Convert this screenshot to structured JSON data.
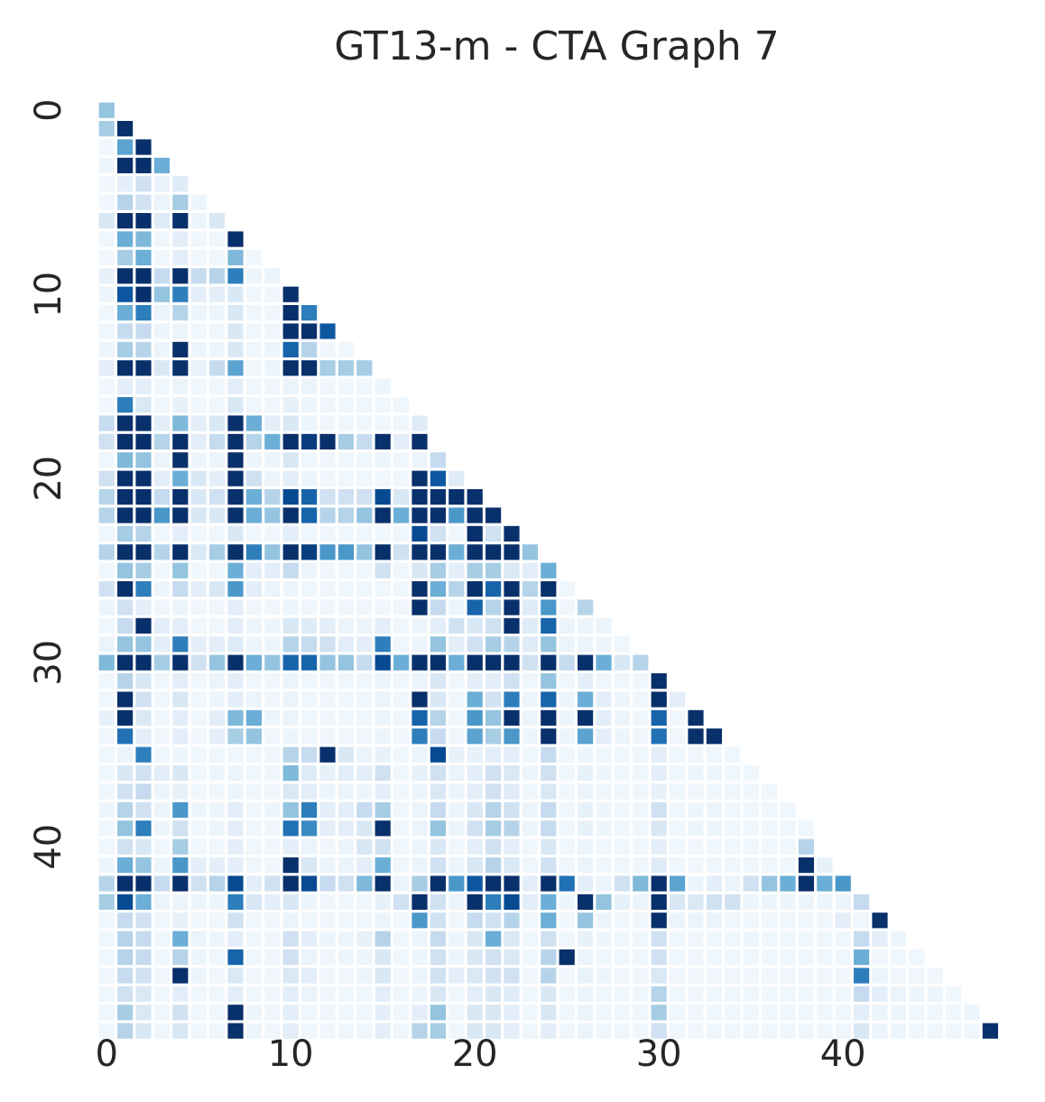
{
  "chart_data": {
    "type": "heatmap",
    "title": "GT13-m - CTA Graph 7",
    "xlabel": "",
    "ylabel": "",
    "n": 50,
    "triangle": "lower",
    "colormap": "Blues",
    "value_range": [
      0,
      1
    ],
    "xticks": [
      0,
      10,
      20,
      30,
      40
    ],
    "yticks": [
      0,
      10,
      20,
      30,
      40
    ],
    "grid": false,
    "rows": [
      [
        0.4
      ],
      [
        0.35,
        1.0
      ],
      [
        0.03,
        0.55,
        1.0
      ],
      [
        0.05,
        1.0,
        1.0,
        0.5
      ],
      [
        0.03,
        0.1,
        0.2,
        0.07,
        0.12
      ],
      [
        0.03,
        0.3,
        0.2,
        0.06,
        0.35,
        0.05
      ],
      [
        0.15,
        1.0,
        1.0,
        0.12,
        1.0,
        0.05,
        0.15
      ],
      [
        0.04,
        0.5,
        0.45,
        0.04,
        0.1,
        0.04,
        0.04,
        1.0
      ],
      [
        0.03,
        0.35,
        0.5,
        0.04,
        0.1,
        0.04,
        0.04,
        0.45,
        0.04
      ],
      [
        0.08,
        1.0,
        1.0,
        0.25,
        1.0,
        0.25,
        0.3,
        0.7,
        0.05,
        0.06
      ],
      [
        0.05,
        0.85,
        1.0,
        0.4,
        0.7,
        0.1,
        0.1,
        0.15,
        0.04,
        0.04,
        1.0
      ],
      [
        0.04,
        0.5,
        0.7,
        0.06,
        0.3,
        0.05,
        0.05,
        0.15,
        0.04,
        0.04,
        1.0,
        0.7
      ],
      [
        0.04,
        0.25,
        0.25,
        0.05,
        0.06,
        0.04,
        0.04,
        0.15,
        0.04,
        0.04,
        1.0,
        1.0,
        0.85
      ],
      [
        0.05,
        0.35,
        0.3,
        0.05,
        1.0,
        0.05,
        0.05,
        0.15,
        0.04,
        0.05,
        0.8,
        0.3,
        0.04,
        0.04
      ],
      [
        0.1,
        1.0,
        1.0,
        0.15,
        1.0,
        0.08,
        0.25,
        0.55,
        0.04,
        0.05,
        1.0,
        1.0,
        0.35,
        0.35,
        0.35
      ],
      [
        0.03,
        0.1,
        0.1,
        0.04,
        0.06,
        0.04,
        0.04,
        0.1,
        0.04,
        0.04,
        0.06,
        0.06,
        0.04,
        0.04,
        0.04,
        0.05
      ],
      [
        0.03,
        0.7,
        0.15,
        0.04,
        0.08,
        0.04,
        0.04,
        0.15,
        0.04,
        0.04,
        0.08,
        0.05,
        0.04,
        0.04,
        0.04,
        0.04,
        0.04
      ],
      [
        0.25,
        1.0,
        1.0,
        0.1,
        0.45,
        0.1,
        0.15,
        1.0,
        0.5,
        0.1,
        0.15,
        0.05,
        0.04,
        0.04,
        0.04,
        0.04,
        0.04,
        0.12
      ],
      [
        0.2,
        1.0,
        1.0,
        0.3,
        1.0,
        0.1,
        0.25,
        1.0,
        0.3,
        0.5,
        1.0,
        0.95,
        1.0,
        0.35,
        0.25,
        1.0,
        0.1,
        1.0
      ],
      [
        0.04,
        0.45,
        0.4,
        0.05,
        1.0,
        0.05,
        0.05,
        1.0,
        0.05,
        0.05,
        0.15,
        0.04,
        0.04,
        0.04,
        0.04,
        0.05,
        0.04,
        0.05,
        0.25
      ],
      [
        0.2,
        1.0,
        1.0,
        0.1,
        0.5,
        0.15,
        0.1,
        1.0,
        0.2,
        0.05,
        0.1,
        0.05,
        0.04,
        0.04,
        0.04,
        0.04,
        0.04,
        1.0,
        0.85,
        0.12
      ],
      [
        0.3,
        1.0,
        1.0,
        0.25,
        1.0,
        0.15,
        0.2,
        1.0,
        0.5,
        0.3,
        0.9,
        0.8,
        0.2,
        0.2,
        0.2,
        0.9,
        0.15,
        1.0,
        1.0,
        1.0,
        1.0
      ],
      [
        0.3,
        1.0,
        1.0,
        0.6,
        1.0,
        0.15,
        0.15,
        1.0,
        0.5,
        0.4,
        1.0,
        0.8,
        0.3,
        0.3,
        0.4,
        1.0,
        0.5,
        1.0,
        1.0,
        0.6,
        1.0,
        1.0
      ],
      [
        0.04,
        0.35,
        0.3,
        0.04,
        0.1,
        0.04,
        0.04,
        0.15,
        0.04,
        0.04,
        0.1,
        0.04,
        0.04,
        0.04,
        0.04,
        0.04,
        0.04,
        0.9,
        0.2,
        0.04,
        1.0,
        0.2,
        1.0
      ],
      [
        0.3,
        1.0,
        1.0,
        0.3,
        1.0,
        0.15,
        0.35,
        1.0,
        0.7,
        0.4,
        1.0,
        0.95,
        0.6,
        0.6,
        0.4,
        1.0,
        0.2,
        1.0,
        1.0,
        0.5,
        1.0,
        1.0,
        1.0,
        0.4
      ],
      [
        0.04,
        0.4,
        0.35,
        0.04,
        0.4,
        0.04,
        0.04,
        0.5,
        0.1,
        0.1,
        0.25,
        0.05,
        0.04,
        0.04,
        0.04,
        0.2,
        0.04,
        0.15,
        0.35,
        0.1,
        0.35,
        0.35,
        0.15,
        0.1,
        0.5
      ],
      [
        0.2,
        1.0,
        0.7,
        0.05,
        0.25,
        0.1,
        0.15,
        0.6,
        0.1,
        0.06,
        0.05,
        0.04,
        0.04,
        0.04,
        0.04,
        0.04,
        0.04,
        1.0,
        0.5,
        0.3,
        1.0,
        0.8,
        1.0,
        0.3,
        1.0,
        0.04
      ],
      [
        0.06,
        0.2,
        0.1,
        0.04,
        0.06,
        0.04,
        0.04,
        0.1,
        0.04,
        0.04,
        0.05,
        0.04,
        0.04,
        0.04,
        0.04,
        0.04,
        0.04,
        1.0,
        0.25,
        0.05,
        0.8,
        0.3,
        1.0,
        0.12,
        0.6,
        0.04,
        0.3
      ],
      [
        0.04,
        0.25,
        1.0,
        0.1,
        0.1,
        0.04,
        0.04,
        0.1,
        0.05,
        0.05,
        0.15,
        0.12,
        0.1,
        0.06,
        0.05,
        0.1,
        0.04,
        0.05,
        0.1,
        0.2,
        0.15,
        0.2,
        1.0,
        0.12,
        0.8,
        0.06,
        0.06,
        0.06
      ],
      [
        0.06,
        0.4,
        0.4,
        0.1,
        0.7,
        0.1,
        0.1,
        0.12,
        0.05,
        0.05,
        0.3,
        0.25,
        0.2,
        0.1,
        0.1,
        0.7,
        0.04,
        0.05,
        0.4,
        0.1,
        0.2,
        0.35,
        0.3,
        0.12,
        0.4,
        0.06,
        0.06,
        0.05,
        0.04
      ],
      [
        0.45,
        1.0,
        1.0,
        0.35,
        1.0,
        0.2,
        0.4,
        1.0,
        0.5,
        0.4,
        0.8,
        0.8,
        0.4,
        0.4,
        0.25,
        0.9,
        0.5,
        1.0,
        1.0,
        0.5,
        1.0,
        1.0,
        1.0,
        0.2,
        1.0,
        0.25,
        1.0,
        0.5,
        0.15,
        0.3
      ],
      [
        0.04,
        0.3,
        0.15,
        0.04,
        0.1,
        0.04,
        0.06,
        0.1,
        0.04,
        0.04,
        0.06,
        0.04,
        0.04,
        0.04,
        0.04,
        0.06,
        0.04,
        0.06,
        0.15,
        0.04,
        0.1,
        0.1,
        0.2,
        0.04,
        0.4,
        0.04,
        0.1,
        0.04,
        0.04,
        0.04,
        1.0
      ],
      [
        0.04,
        1.0,
        0.2,
        0.04,
        0.15,
        0.04,
        0.05,
        0.1,
        0.06,
        0.04,
        0.06,
        0.04,
        0.04,
        0.04,
        0.04,
        0.06,
        0.04,
        1.0,
        0.15,
        0.04,
        0.5,
        0.2,
        0.7,
        0.05,
        0.8,
        0.05,
        0.5,
        0.1,
        0.05,
        0.04,
        1.0,
        0.1
      ],
      [
        0.08,
        1.0,
        0.15,
        0.04,
        0.1,
        0.04,
        0.1,
        0.45,
        0.5,
        0.05,
        0.06,
        0.04,
        0.04,
        0.04,
        0.04,
        0.06,
        0.04,
        0.8,
        0.3,
        0.04,
        0.6,
        0.4,
        1.0,
        0.05,
        1.0,
        0.05,
        1.0,
        0.1,
        0.05,
        0.04,
        0.8,
        0.04,
        1.0
      ],
      [
        0.04,
        0.75,
        0.1,
        0.04,
        0.1,
        0.04,
        0.1,
        0.35,
        0.4,
        0.04,
        0.05,
        0.04,
        0.04,
        0.04,
        0.04,
        0.05,
        0.04,
        0.7,
        0.25,
        0.04,
        0.55,
        0.35,
        0.6,
        0.05,
        1.0,
        0.05,
        0.55,
        0.1,
        0.05,
        0.04,
        0.75,
        0.04,
        1.0,
        1.0
      ],
      [
        0.04,
        0.06,
        0.7,
        0.04,
        0.05,
        0.04,
        0.04,
        0.04,
        0.04,
        0.04,
        0.3,
        0.25,
        1.0,
        0.15,
        0.06,
        0.08,
        0.04,
        0.06,
        0.9,
        0.08,
        0.08,
        0.1,
        0.1,
        0.04,
        0.25,
        0.04,
        0.05,
        0.04,
        0.04,
        0.04,
        0.1,
        0.04,
        0.04,
        0.04,
        0.04
      ],
      [
        0.04,
        0.15,
        0.2,
        0.1,
        0.15,
        0.04,
        0.05,
        0.06,
        0.04,
        0.04,
        0.45,
        0.12,
        0.08,
        0.1,
        0.1,
        0.2,
        0.04,
        0.08,
        0.2,
        0.06,
        0.1,
        0.2,
        0.15,
        0.05,
        0.2,
        0.04,
        0.08,
        0.05,
        0.04,
        0.04,
        0.1,
        0.04,
        0.05,
        0.05,
        0.04,
        0.04
      ],
      [
        0.04,
        0.2,
        0.25,
        0.05,
        0.08,
        0.04,
        0.04,
        0.06,
        0.04,
        0.04,
        0.15,
        0.1,
        0.05,
        0.06,
        0.05,
        0.1,
        0.04,
        0.05,
        0.15,
        0.05,
        0.1,
        0.2,
        0.12,
        0.04,
        0.15,
        0.04,
        0.06,
        0.04,
        0.04,
        0.04,
        0.08,
        0.04,
        0.04,
        0.04,
        0.04,
        0.04,
        0.04
      ],
      [
        0.05,
        0.3,
        0.2,
        0.05,
        0.6,
        0.05,
        0.05,
        0.1,
        0.04,
        0.05,
        0.4,
        0.7,
        0.1,
        0.1,
        0.25,
        0.35,
        0.04,
        0.06,
        0.25,
        0.05,
        0.15,
        0.3,
        0.2,
        0.05,
        0.25,
        0.04,
        0.08,
        0.05,
        0.04,
        0.04,
        0.2,
        0.04,
        0.05,
        0.05,
        0.04,
        0.04,
        0.04,
        0.04
      ],
      [
        0.04,
        0.4,
        0.7,
        0.05,
        0.2,
        0.04,
        0.05,
        0.1,
        0.04,
        0.04,
        0.75,
        0.65,
        0.1,
        0.1,
        0.15,
        1.0,
        0.04,
        0.06,
        0.4,
        0.06,
        0.2,
        0.35,
        0.3,
        0.05,
        0.25,
        0.04,
        0.08,
        0.05,
        0.04,
        0.04,
        0.15,
        0.04,
        0.05,
        0.05,
        0.04,
        0.04,
        0.04,
        0.04,
        0.04
      ],
      [
        0.04,
        0.2,
        0.15,
        0.04,
        0.35,
        0.04,
        0.04,
        0.1,
        0.04,
        0.04,
        0.1,
        0.06,
        0.04,
        0.05,
        0.15,
        0.2,
        0.04,
        0.05,
        0.15,
        0.04,
        0.1,
        0.2,
        0.1,
        0.04,
        0.15,
        0.04,
        0.06,
        0.04,
        0.04,
        0.04,
        0.1,
        0.04,
        0.04,
        0.04,
        0.04,
        0.04,
        0.04,
        0.04,
        0.3
      ],
      [
        0.05,
        0.5,
        0.4,
        0.05,
        0.6,
        0.1,
        0.1,
        0.1,
        0.04,
        0.04,
        1.0,
        0.15,
        0.06,
        0.06,
        0.1,
        0.5,
        0.04,
        0.06,
        0.2,
        0.05,
        0.15,
        0.3,
        0.15,
        0.04,
        0.2,
        0.04,
        0.06,
        0.04,
        0.04,
        0.04,
        0.12,
        0.04,
        0.04,
        0.04,
        0.04,
        0.04,
        0.04,
        0.04,
        1.0,
        0.08
      ],
      [
        0.3,
        1.0,
        1.0,
        0.25,
        1.0,
        0.2,
        0.3,
        0.9,
        0.1,
        0.2,
        1.0,
        0.9,
        0.25,
        0.2,
        0.45,
        1.0,
        0.06,
        0.35,
        1.0,
        0.6,
        0.85,
        1.0,
        1.0,
        0.1,
        1.0,
        0.75,
        0.1,
        0.06,
        0.2,
        0.45,
        1.0,
        0.55,
        0.05,
        0.1,
        0.06,
        0.2,
        0.4,
        0.5,
        1.0,
        0.5,
        0.6
      ],
      [
        0.35,
        0.9,
        0.5,
        0.05,
        0.06,
        0.05,
        0.05,
        0.7,
        0.15,
        0.1,
        0.15,
        0.05,
        0.04,
        0.04,
        0.04,
        0.08,
        0.2,
        1.0,
        0.2,
        0.06,
        1.0,
        0.7,
        0.9,
        0.1,
        0.5,
        0.05,
        1.0,
        0.4,
        0.08,
        0.06,
        1.0,
        0.15,
        0.15,
        0.2,
        0.2,
        0.05,
        0.05,
        0.05,
        0.05,
        0.05,
        0.05,
        0.25
      ],
      [
        0.04,
        0.25,
        0.2,
        0.04,
        0.08,
        0.04,
        0.04,
        0.2,
        0.04,
        0.04,
        0.06,
        0.04,
        0.04,
        0.04,
        0.04,
        0.06,
        0.04,
        0.6,
        0.2,
        0.04,
        0.25,
        0.2,
        0.3,
        0.04,
        0.5,
        0.04,
        0.4,
        0.06,
        0.04,
        0.04,
        1.0,
        0.06,
        0.06,
        0.06,
        0.04,
        0.04,
        0.04,
        0.04,
        0.04,
        0.04,
        0.1,
        0.04,
        1.0
      ],
      [
        0.04,
        0.3,
        0.25,
        0.04,
        0.5,
        0.06,
        0.05,
        0.1,
        0.04,
        0.04,
        0.2,
        0.1,
        0.05,
        0.05,
        0.08,
        0.3,
        0.04,
        0.05,
        0.25,
        0.05,
        0.15,
        0.5,
        0.15,
        0.04,
        0.2,
        0.04,
        0.08,
        0.05,
        0.04,
        0.04,
        0.2,
        0.04,
        0.04,
        0.04,
        0.04,
        0.05,
        0.04,
        0.04,
        0.04,
        0.04,
        0.04,
        0.25,
        0.1,
        0.05
      ],
      [
        0.04,
        0.3,
        0.25,
        0.04,
        0.3,
        0.05,
        0.04,
        0.8,
        0.04,
        0.04,
        0.2,
        0.06,
        0.04,
        0.05,
        0.05,
        0.15,
        0.04,
        0.05,
        0.2,
        0.05,
        0.15,
        0.2,
        0.15,
        0.04,
        0.3,
        1.0,
        0.06,
        0.04,
        0.04,
        0.04,
        0.2,
        0.04,
        0.04,
        0.04,
        0.04,
        0.04,
        0.04,
        0.04,
        0.04,
        0.04,
        0.04,
        0.5,
        0.04,
        0.04,
        0.04
      ],
      [
        0.04,
        0.25,
        0.2,
        0.04,
        1.0,
        0.05,
        0.04,
        0.15,
        0.04,
        0.04,
        0.15,
        0.1,
        0.04,
        0.04,
        0.05,
        0.15,
        0.04,
        0.05,
        0.2,
        0.1,
        0.15,
        0.2,
        0.2,
        0.04,
        0.3,
        0.04,
        0.08,
        0.05,
        0.04,
        0.04,
        0.15,
        0.04,
        0.04,
        0.04,
        0.04,
        0.04,
        0.04,
        0.04,
        0.04,
        0.04,
        0.04,
        0.7,
        0.06,
        0.04,
        0.04,
        0.04
      ],
      [
        0.04,
        0.2,
        0.15,
        0.04,
        0.1,
        0.04,
        0.04,
        0.1,
        0.04,
        0.04,
        0.1,
        0.06,
        0.04,
        0.04,
        0.04,
        0.1,
        0.04,
        0.05,
        0.15,
        0.04,
        0.1,
        0.15,
        0.12,
        0.04,
        0.15,
        0.04,
        0.06,
        0.04,
        0.04,
        0.04,
        0.3,
        0.04,
        0.04,
        0.04,
        0.04,
        0.04,
        0.04,
        0.04,
        0.04,
        0.04,
        0.04,
        0.25,
        0.1,
        0.06,
        0.05,
        0.05,
        0.04
      ],
      [
        0.04,
        0.35,
        0.15,
        0.04,
        0.2,
        0.04,
        0.04,
        1.0,
        0.05,
        0.04,
        0.1,
        0.04,
        0.04,
        0.04,
        0.04,
        0.1,
        0.04,
        0.1,
        0.4,
        0.04,
        0.15,
        0.15,
        0.1,
        0.04,
        0.15,
        0.04,
        0.06,
        0.04,
        0.04,
        0.04,
        0.35,
        0.04,
        0.04,
        0.04,
        0.04,
        0.04,
        0.04,
        0.04,
        0.04,
        0.04,
        0.04,
        0.1,
        0.06,
        0.05,
        0.04,
        0.04,
        0.04,
        0.05
      ],
      [
        0.04,
        0.3,
        0.15,
        0.04,
        0.15,
        0.04,
        0.04,
        1.0,
        0.05,
        0.04,
        0.1,
        0.04,
        0.04,
        0.04,
        0.04,
        0.1,
        0.04,
        0.3,
        0.35,
        0.04,
        0.15,
        0.15,
        0.1,
        0.04,
        0.1,
        0.04,
        0.06,
        0.04,
        0.04,
        0.04,
        0.2,
        0.04,
        0.04,
        0.04,
        0.04,
        0.04,
        0.04,
        0.04,
        0.04,
        0.04,
        0.04,
        0.15,
        0.06,
        0.05,
        0.04,
        0.04,
        0.04,
        0.04,
        1.0
      ]
    ]
  }
}
